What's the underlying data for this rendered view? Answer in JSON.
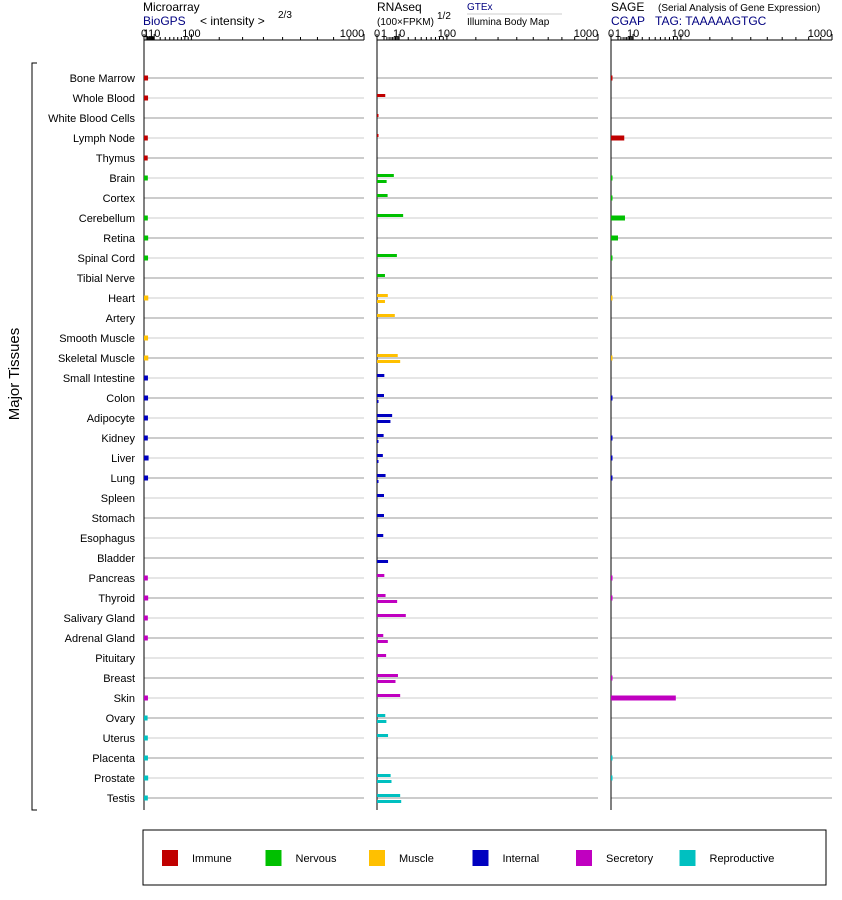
{
  "headers": {
    "microarray": {
      "title": "Microarray",
      "source": "BioGPS",
      "metric": "< intensity >",
      "metric_exp": "2/3"
    },
    "rnaseq": {
      "title": "RNAseq",
      "metric": "(100×FPKM)",
      "metric_exp": "1/2",
      "source1": "GTEx",
      "source2": "Illumina Body Map"
    },
    "sage": {
      "title": "SAGE",
      "subtitle": "(Serial Analysis of Gene Expression)",
      "source": "CGAP",
      "tag": "TAG: TAAAAAGTGC"
    }
  },
  "y_axis_label": "Major Tissues",
  "colors": {
    "Immune": "#c00000",
    "Nervous": "#00c000",
    "Muscle": "#ffc000",
    "Internal": "#0000c0",
    "Secretory": "#c000c0",
    "Reproductive": "#00c0c0"
  },
  "legend": [
    "Immune",
    "Nervous",
    "Muscle",
    "Internal",
    "Secretory",
    "Reproductive"
  ],
  "chart_data": [
    {
      "type": "bar",
      "panel": "Microarray",
      "scale": "power 2/3",
      "xlim": [
        0,
        1000
      ],
      "tick_labels": [
        "0",
        "1",
        "10",
        "100",
        "1000"
      ],
      "categories": [
        "Bone Marrow",
        "Whole Blood",
        "White Blood Cells",
        "Lymph Node",
        "Thymus",
        "Brain",
        "Cortex",
        "Cerebellum",
        "Retina",
        "Spinal Cord",
        "Tibial Nerve",
        "Heart",
        "Artery",
        "Smooth Muscle",
        "Skeletal Muscle",
        "Small Intestine",
        "Colon",
        "Adipocyte",
        "Kidney",
        "Liver",
        "Lung",
        "Spleen",
        "Stomach",
        "Esophagus",
        "Bladder",
        "Pancreas",
        "Thyroid",
        "Salivary Gland",
        "Adrenal Gland",
        "Pituitary",
        "Breast",
        "Skin",
        "Ovary",
        "Uterus",
        "Placenta",
        "Prostate",
        "Testis"
      ],
      "groups": [
        "Immune",
        "Immune",
        "Immune",
        "Immune",
        "Immune",
        "Nervous",
        "Nervous",
        "Nervous",
        "Nervous",
        "Nervous",
        "Nervous",
        "Muscle",
        "Muscle",
        "Muscle",
        "Muscle",
        "Internal",
        "Internal",
        "Internal",
        "Internal",
        "Internal",
        "Internal",
        "Internal",
        "Internal",
        "Internal",
        "Internal",
        "Secretory",
        "Secretory",
        "Secretory",
        "Secretory",
        "Secretory",
        "Secretory",
        "Secretory",
        "Reproductive",
        "Reproductive",
        "Reproductive",
        "Reproductive",
        "Reproductive"
      ],
      "values": [
        2.5,
        2.5,
        null,
        2.3,
        2.2,
        2.3,
        null,
        2.3,
        2.6,
        2.5,
        null,
        2.7,
        null,
        2.5,
        2.7,
        2.4,
        2.5,
        2.4,
        2.3,
        3.0,
        2.5,
        null,
        null,
        null,
        null,
        2.3,
        2.6,
        2.3,
        2.3,
        null,
        null,
        2.4,
        2.1,
        2.3,
        2.4,
        2.6,
        2.3
      ]
    },
    {
      "type": "bar",
      "panel": "RNAseq",
      "scale": "power 1/2",
      "xlim": [
        0,
        1000
      ],
      "tick_labels": [
        "0",
        "1",
        "10",
        "100",
        "1000"
      ],
      "series": [
        {
          "name": "GTEx",
          "values": [
            null,
            1.4,
            0.001,
            0.001,
            null,
            5.8,
            2.3,
            14.0,
            null,
            8.1,
            1.3,
            2.4,
            6.5,
            null,
            8.8,
            1.1,
            1.0,
            4.7,
            0.9,
            0.7,
            1.5,
            1.0,
            1.0,
            0.8,
            null,
            1.1,
            1.5,
            17.0,
            0.8,
            1.7,
            9.0,
            11.0,
            1.4,
            2.5,
            null,
            3.8,
            11.0
          ]
        },
        {
          "name": "Illumina Body Map",
          "values": [
            null,
            null,
            null,
            null,
            null,
            1.9,
            null,
            null,
            null,
            null,
            null,
            1.3,
            null,
            null,
            11.0,
            null,
            0.005,
            3.7,
            0.003,
            0.004,
            0.005,
            null,
            null,
            null,
            2.5,
            null,
            8.3,
            null,
            2.4,
            null,
            7.0,
            null,
            1.8,
            null,
            null,
            4.3,
            12.0
          ]
        }
      ]
    },
    {
      "type": "bar",
      "panel": "SAGE",
      "scale": "power 1/2",
      "xlim": [
        0,
        1000
      ],
      "tick_labels": [
        "0",
        "1",
        "10",
        "100",
        "1000"
      ],
      "values": [
        0.01,
        null,
        null,
        3.6,
        null,
        0.01,
        0.01,
        4.0,
        1.0,
        0.01,
        null,
        0.002,
        null,
        null,
        0.002,
        null,
        0.01,
        null,
        0.01,
        0.01,
        0.01,
        null,
        null,
        null,
        null,
        0.01,
        0.01,
        null,
        null,
        null,
        0.01,
        86,
        null,
        null,
        0.01,
        0.01,
        null
      ]
    }
  ]
}
